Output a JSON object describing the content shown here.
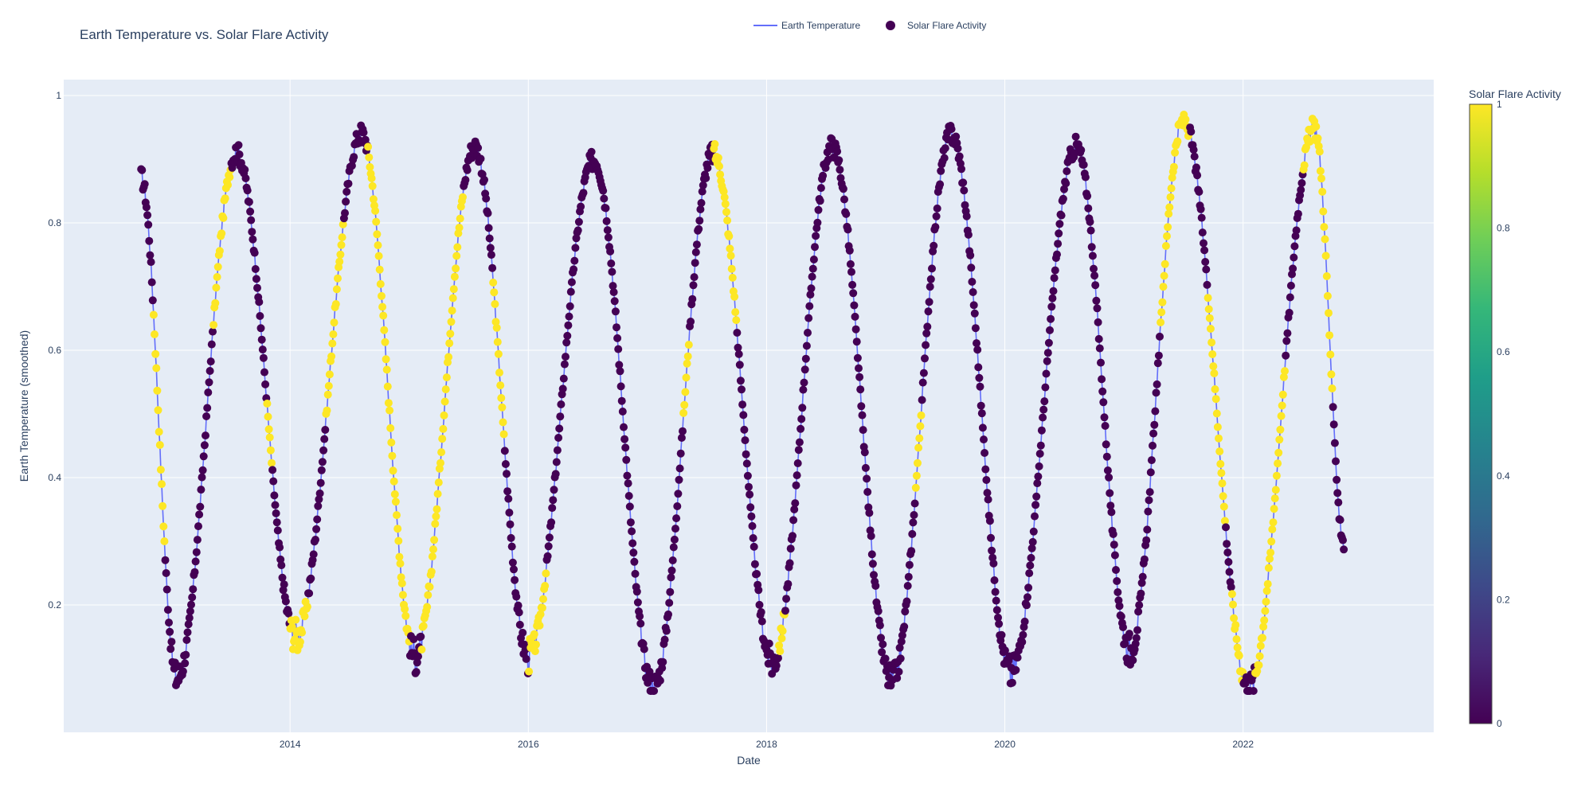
{
  "chart_data": {
    "type": "scatter",
    "title": "Earth Temperature vs. Solar Flare Activity",
    "xlabel": "Date",
    "ylabel": "Earth Temperature (smoothed)",
    "xlim": [
      2012.1,
      2023.6
    ],
    "ylim": [
      0.0,
      1.025
    ],
    "x_ticks": [
      2014,
      2016,
      2018,
      2020,
      2022
    ],
    "x_tick_labels": [
      "2014",
      "2016",
      "2018",
      "2020",
      "2022"
    ],
    "y_ticks": [
      0.2,
      0.4,
      0.6,
      0.8,
      1.0
    ],
    "y_tick_labels": [
      "0.2",
      "0.4",
      "0.6",
      "0.8",
      "1"
    ],
    "grid": true,
    "legend": {
      "placement": "top-center",
      "entries": [
        "Earth Temperature",
        "Solar Flare Activity"
      ]
    },
    "colorbar": {
      "title": "Solar Flare Activity",
      "range": [
        0,
        1
      ],
      "ticks": [
        0,
        0.2,
        0.4,
        0.6,
        0.8,
        1
      ],
      "tick_labels": [
        "0",
        "0.2",
        "0.4",
        "0.6",
        "0.8",
        "1"
      ],
      "colorscale": "viridis"
    },
    "colors": {
      "line": "#636efa",
      "plot_bg": "#e5ecf6",
      "grid": "#ffffff",
      "low": "#440154",
      "high": "#fde725"
    },
    "series": [
      {
        "name": "Earth Temperature",
        "mode": "lines+markers",
        "x_start": 2012.75,
        "x_end": 2022.85,
        "peaks": [
          {
            "x": 2013.55,
            "y": 0.91
          },
          {
            "x": 2014.6,
            "y": 0.94
          },
          {
            "x": 2015.55,
            "y": 0.92
          },
          {
            "x": 2016.55,
            "y": 0.9
          },
          {
            "x": 2017.55,
            "y": 0.91
          },
          {
            "x": 2018.55,
            "y": 0.92
          },
          {
            "x": 2019.55,
            "y": 0.94
          },
          {
            "x": 2020.6,
            "y": 0.92
          },
          {
            "x": 2021.5,
            "y": 0.96
          },
          {
            "x": 2022.6,
            "y": 0.95
          }
        ],
        "troughs": [
          {
            "x": 2013.05,
            "y": 0.085
          },
          {
            "x": 2014.05,
            "y": 0.15
          },
          {
            "x": 2015.05,
            "y": 0.12
          },
          {
            "x": 2016.0,
            "y": 0.12
          },
          {
            "x": 2017.05,
            "y": 0.07
          },
          {
            "x": 2018.05,
            "y": 0.11
          },
          {
            "x": 2019.05,
            "y": 0.08
          },
          {
            "x": 2020.05,
            "y": 0.095
          },
          {
            "x": 2021.05,
            "y": 0.13
          },
          {
            "x": 2022.05,
            "y": 0.07
          }
        ],
        "start_value": 0.87,
        "end_value": 0.3,
        "flare_intervals": [
          [
            2012.85,
            2012.95
          ],
          [
            2013.35,
            2013.5
          ],
          [
            2013.8,
            2013.85
          ],
          [
            2014.0,
            2014.15
          ],
          [
            2014.3,
            2014.45
          ],
          [
            2014.65,
            2015.0
          ],
          [
            2015.1,
            2015.45
          ],
          [
            2015.7,
            2015.8
          ],
          [
            2016.0,
            2016.15
          ],
          [
            2017.3,
            2017.35
          ],
          [
            2017.55,
            2017.75
          ],
          [
            2018.1,
            2018.15
          ],
          [
            2019.25,
            2019.3
          ],
          [
            2021.3,
            2021.55
          ],
          [
            2021.7,
            2021.85
          ],
          [
            2021.9,
            2022.0
          ],
          [
            2022.1,
            2022.35
          ],
          [
            2022.5,
            2022.75
          ]
        ]
      }
    ]
  }
}
